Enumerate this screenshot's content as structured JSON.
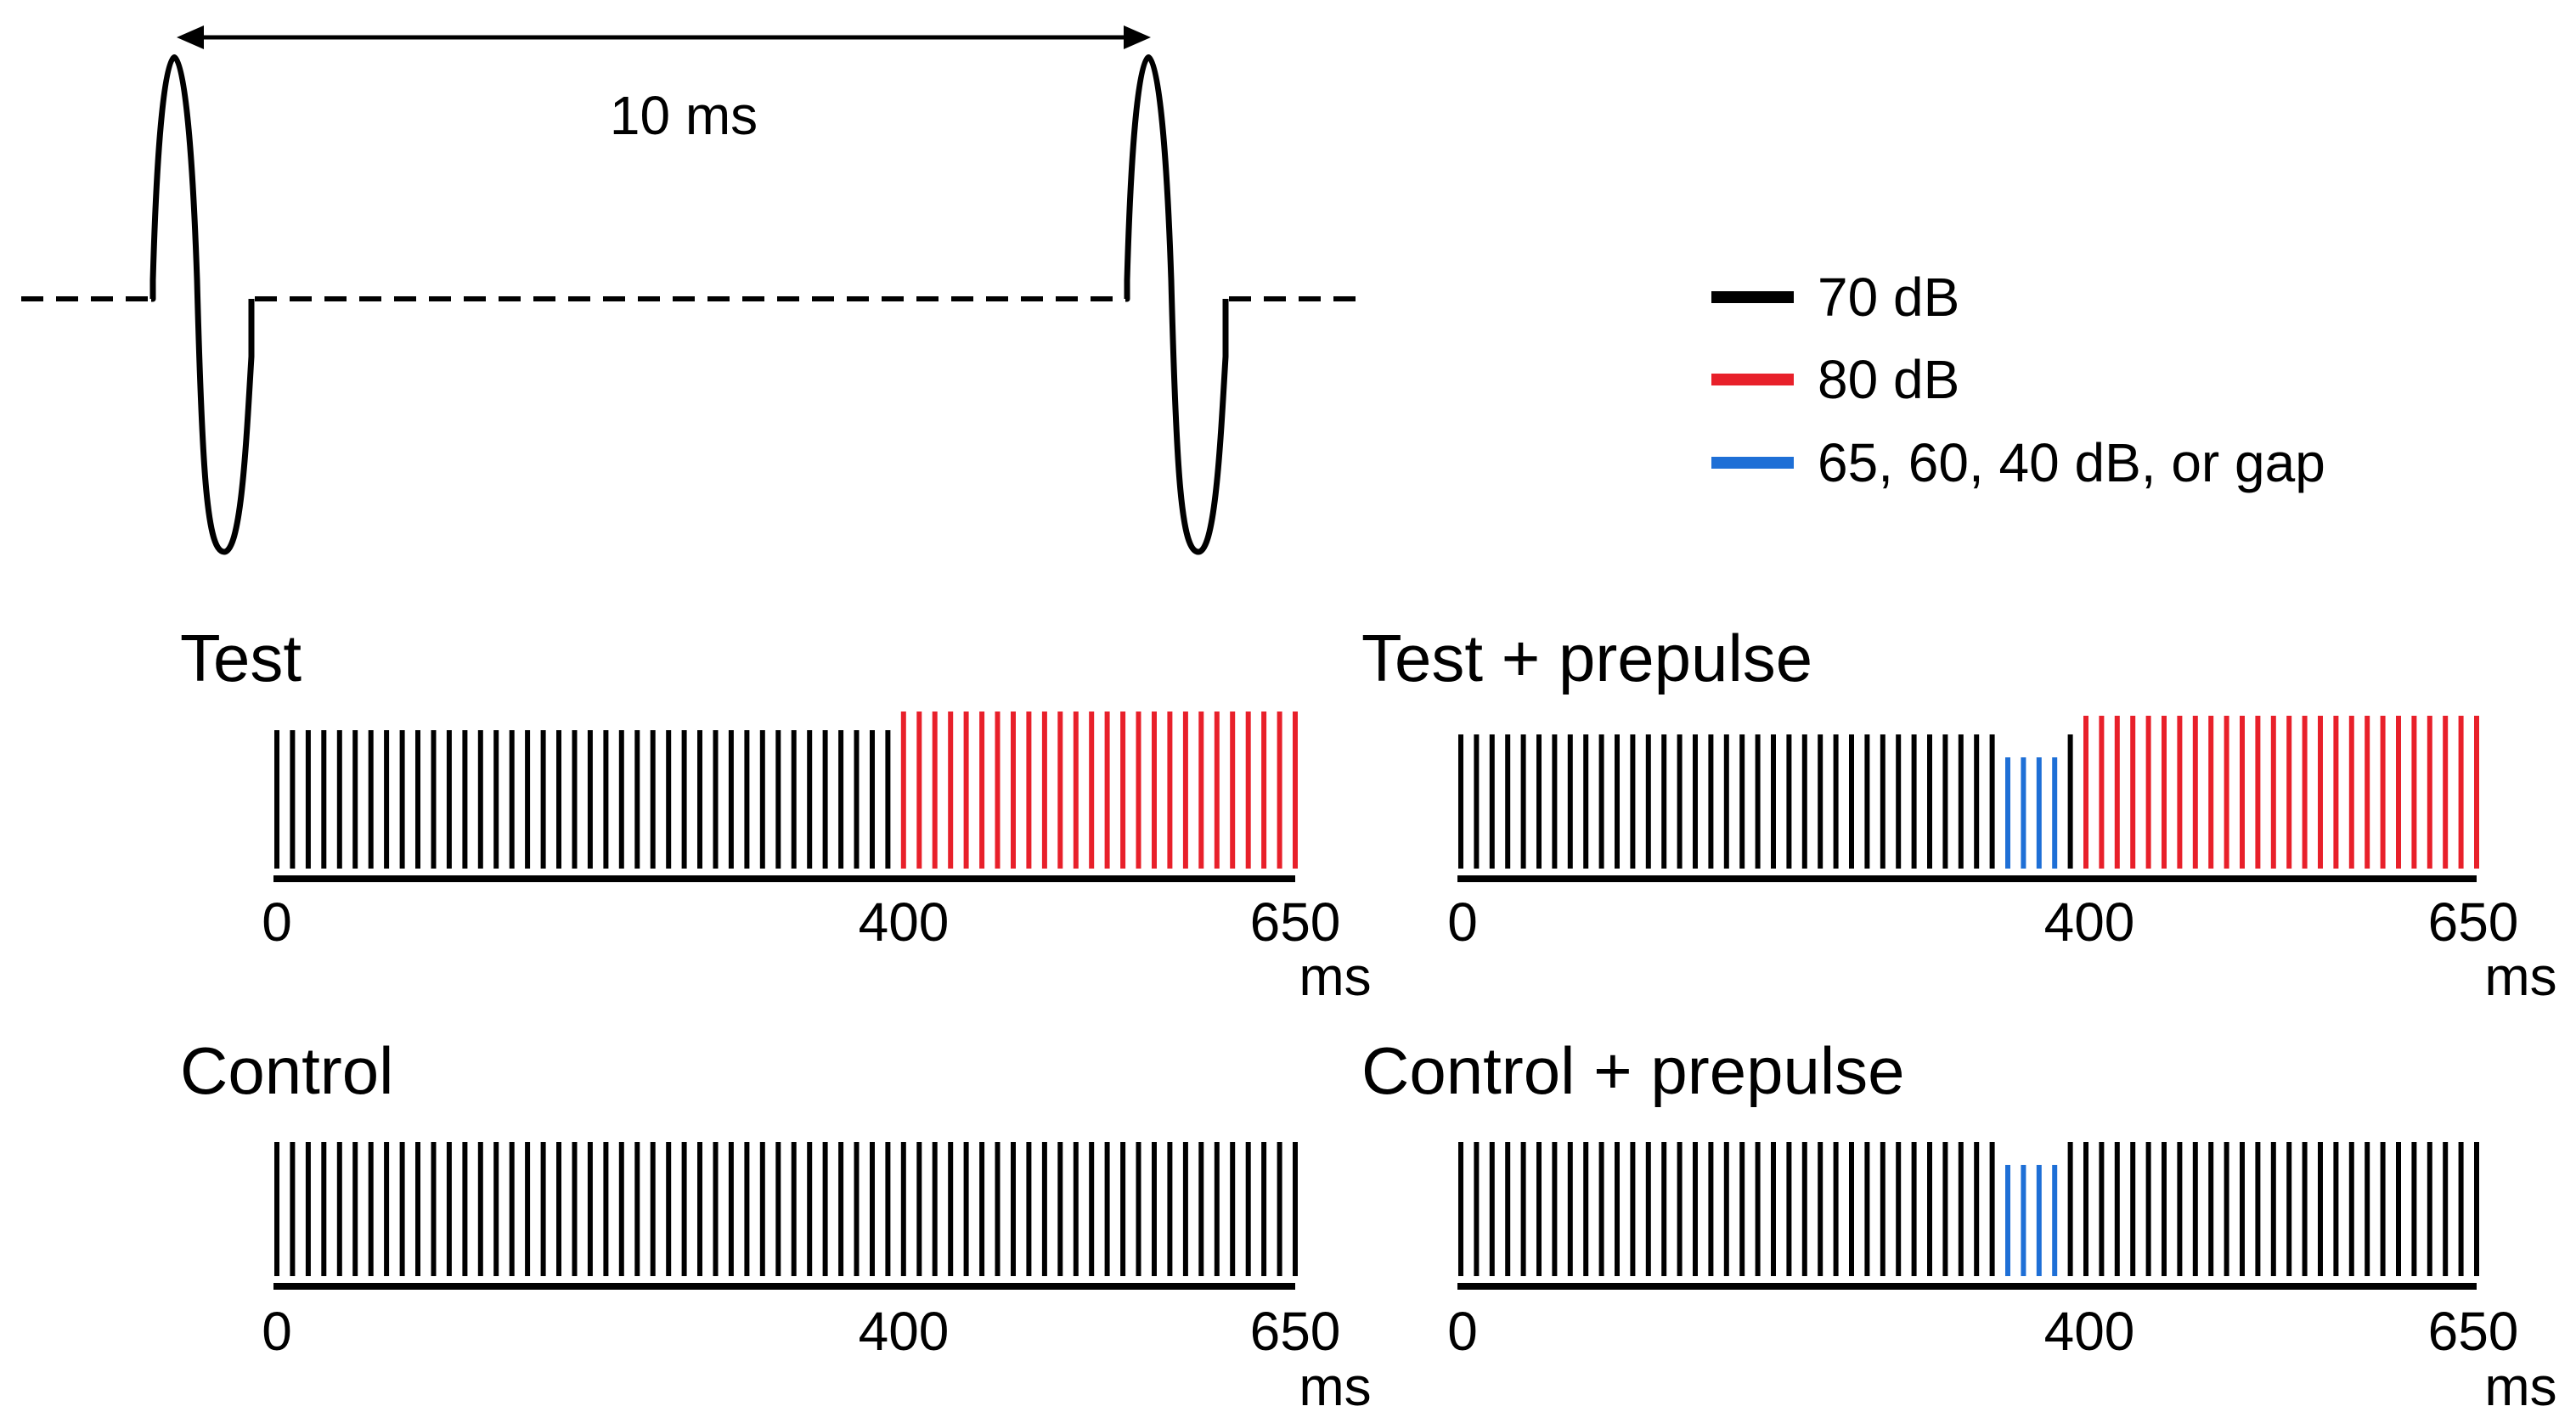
{
  "waveform": {
    "period_label": "10 ms"
  },
  "legend": {
    "items": [
      {
        "label": "70 dB",
        "color": "#000000"
      },
      {
        "label": "80 dB",
        "color": "#e8202a"
      },
      {
        "label": "65, 60, 40 dB, or gap",
        "color": "#1e6fd6"
      }
    ]
  },
  "colors": {
    "base": "#000000",
    "loud": "#e8202a",
    "prepulse": "#1e6fd6"
  },
  "axis": {
    "duration_ms": 650,
    "interval_ms": 10,
    "ticks": [
      "0",
      "400",
      "650"
    ],
    "tick_values_ms": [
      0,
      400,
      650
    ],
    "unit": "ms",
    "prepulse_start_ms": 350,
    "prepulse_end_ms": 380,
    "pulse_start_ms": 400
  },
  "panels": [
    {
      "title": "Test",
      "prepulse": false,
      "pulse": true
    },
    {
      "title": "Test + prepulse",
      "prepulse": true,
      "pulse": true
    },
    {
      "title": "Control",
      "prepulse": false,
      "pulse": false
    },
    {
      "title": "Control + prepulse",
      "prepulse": true,
      "pulse": false
    }
  ]
}
